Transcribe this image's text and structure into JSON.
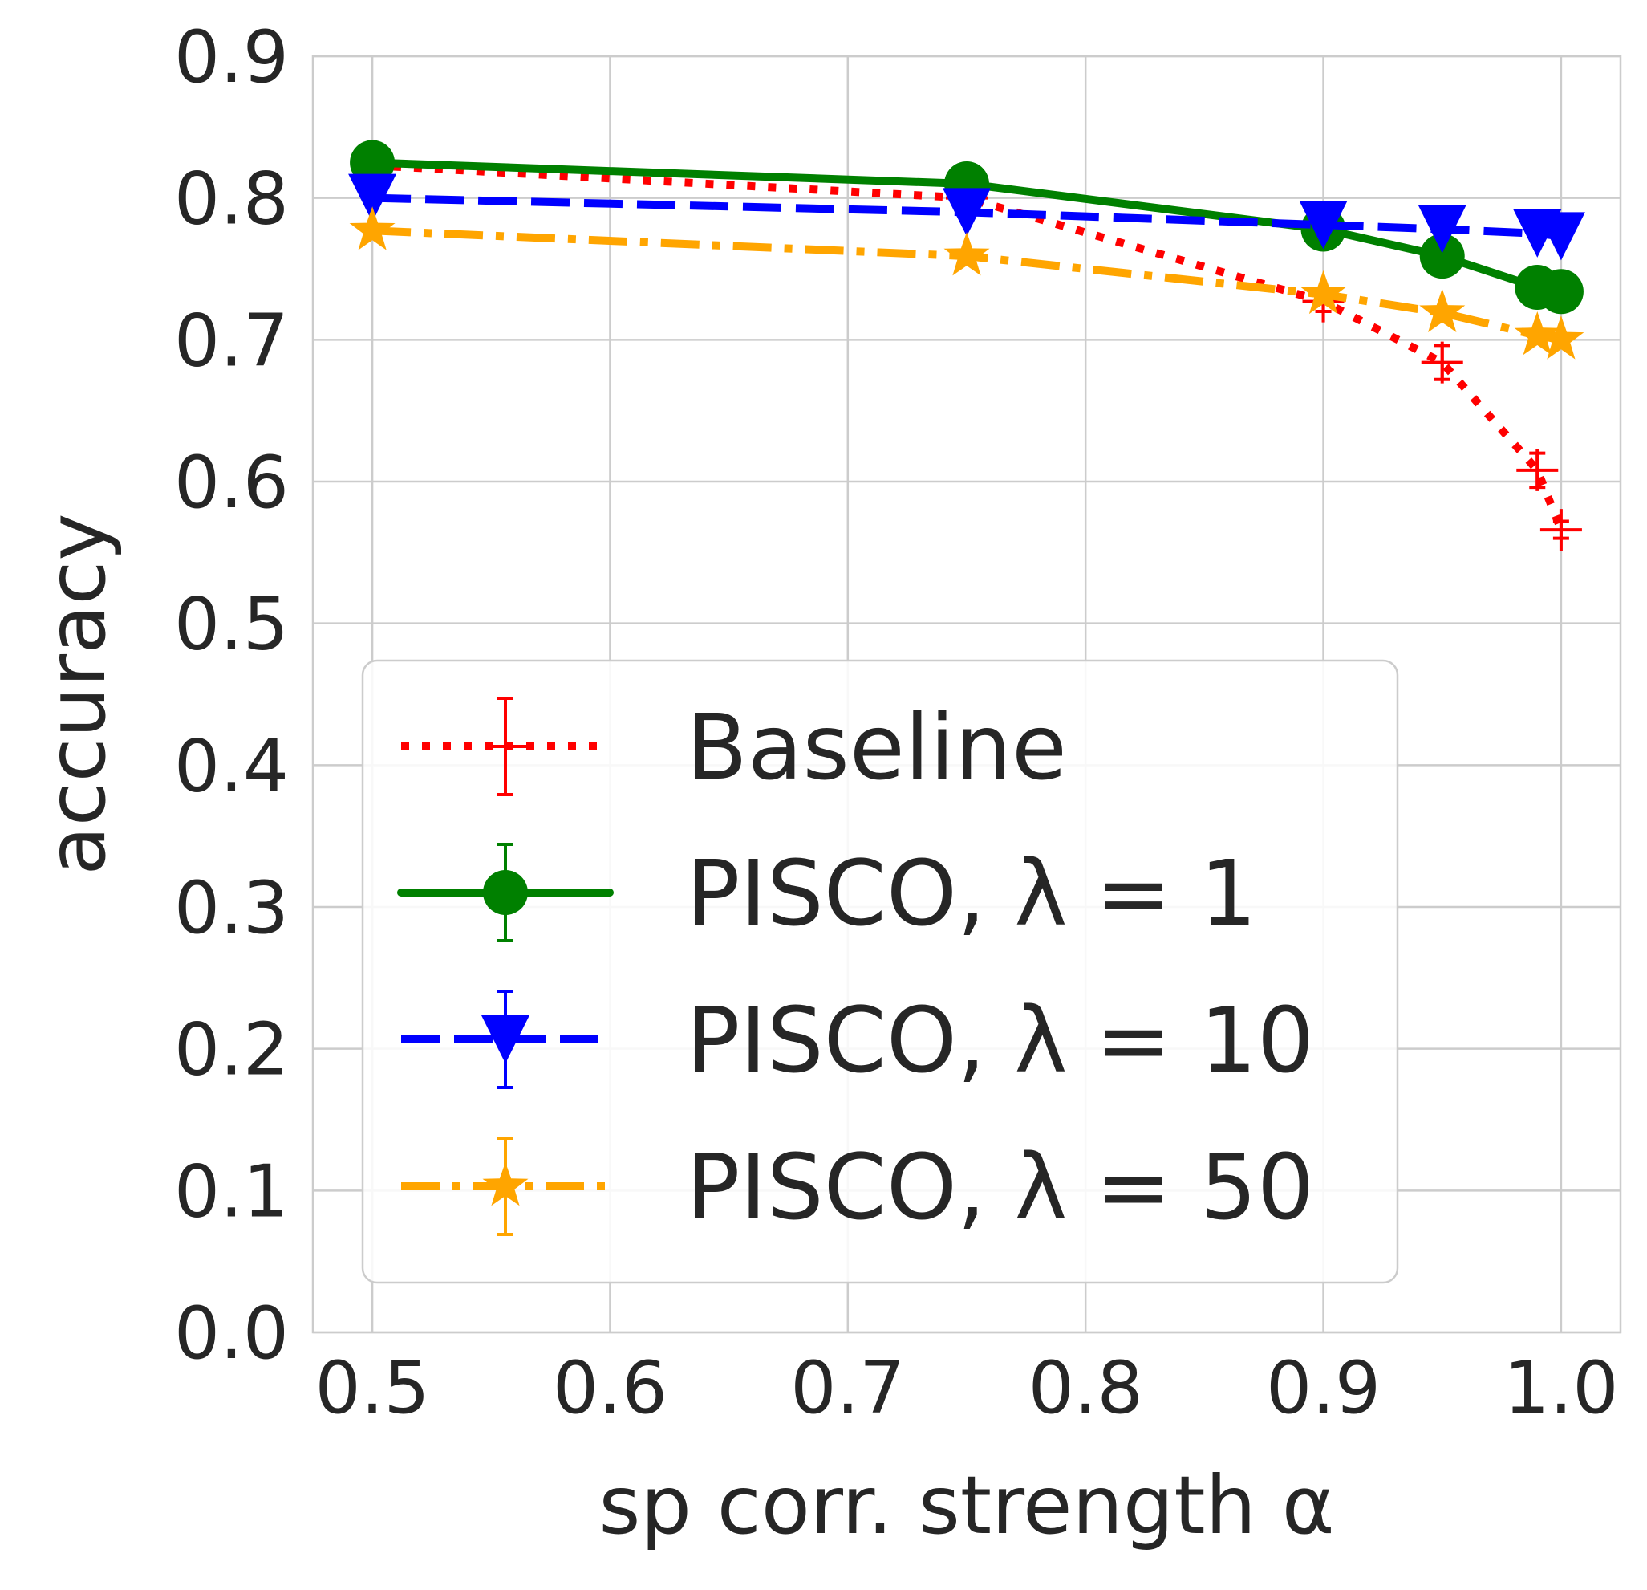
{
  "chart_data": {
    "type": "line",
    "xlabel": "sp corr. strength α",
    "ylabel": "accuracy",
    "xlim": [
      0.475,
      1.025
    ],
    "ylim": [
      0.0,
      0.9
    ],
    "x_ticks": [
      "0.5",
      "0.6",
      "0.7",
      "0.8",
      "0.9",
      "1.0"
    ],
    "y_ticks": [
      "0.0",
      "0.1",
      "0.2",
      "0.3",
      "0.4",
      "0.5",
      "0.6",
      "0.7",
      "0.8",
      "0.9"
    ],
    "grid": true,
    "legend_position": "lower-left",
    "x": [
      0.5,
      0.75,
      0.9,
      0.95,
      0.99,
      1.0
    ],
    "series": [
      {
        "name": "Baseline",
        "color": "#ff0000",
        "linestyle": "dotted",
        "marker": "plus",
        "values": [
          0.823,
          0.8,
          0.727,
          0.684,
          0.608,
          0.566
        ],
        "errors": [
          0.003,
          0.004,
          0.007,
          0.012,
          0.012,
          0.006
        ]
      },
      {
        "name": "PISCO, λ = 1",
        "color": "#008000",
        "linestyle": "solid",
        "marker": "circle",
        "values": [
          0.825,
          0.81,
          0.778,
          0.759,
          0.737,
          0.734
        ],
        "errors": [
          0.004,
          0.004,
          0.004,
          0.004,
          0.004,
          0.004
        ]
      },
      {
        "name": "PISCO, λ = 10",
        "color": "#0000ff",
        "linestyle": "dashed",
        "marker": "triangle-down",
        "values": [
          0.8,
          0.79,
          0.781,
          0.778,
          0.775,
          0.773
        ],
        "errors": [
          0.003,
          0.003,
          0.003,
          0.003,
          0.003,
          0.003
        ]
      },
      {
        "name": "PISCO, λ = 50",
        "color": "#ffa500",
        "linestyle": "dashdot",
        "marker": "star",
        "values": [
          0.777,
          0.759,
          0.732,
          0.719,
          0.703,
          0.7
        ],
        "errors": [
          0.003,
          0.003,
          0.003,
          0.003,
          0.003,
          0.003
        ]
      }
    ]
  }
}
